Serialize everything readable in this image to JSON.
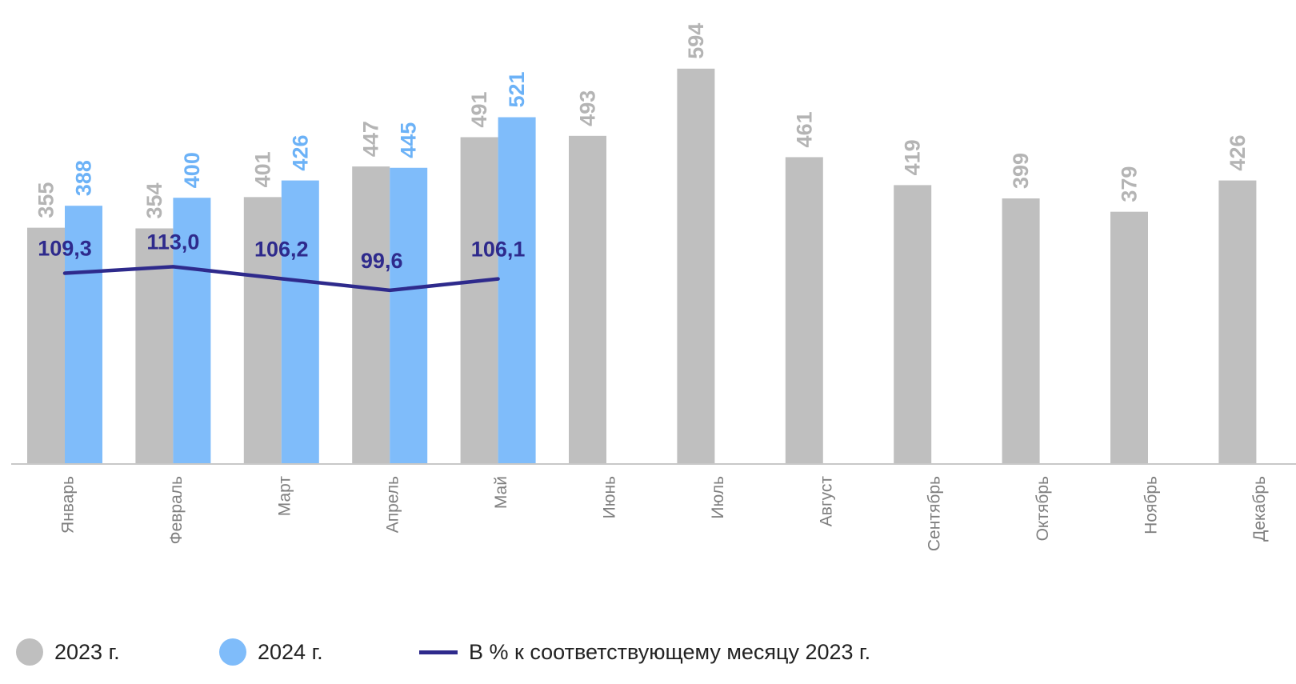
{
  "chart_data": {
    "type": "bar",
    "title": "",
    "xlabel": "",
    "ylabel": "",
    "categories": [
      "Январь",
      "Февраль",
      "Март",
      "Апрель",
      "Май",
      "Июнь",
      "Июль",
      "Август",
      "Сентябрь",
      "Октябрь",
      "Ноябрь",
      "Декабрь"
    ],
    "series": [
      {
        "name": "2023 г.",
        "type": "bar",
        "color": "#bfbfbf",
        "label_color": "#b4b4b4",
        "values": [
          355,
          354,
          401,
          447,
          491,
          493,
          594,
          461,
          419,
          399,
          379,
          426
        ]
      },
      {
        "name": "2024 г.",
        "type": "bar",
        "color": "#7fbcfa",
        "label_color": "#6cb2f7",
        "values": [
          388,
          400,
          426,
          445,
          521,
          null,
          null,
          null,
          null,
          null,
          null,
          null
        ]
      },
      {
        "name": "В % к соответствующему месяцу 2023 г.",
        "type": "line",
        "color": "#2e2a8c",
        "values": [
          109.3,
          113.0,
          106.2,
          99.6,
          106.1,
          null,
          null,
          null,
          null,
          null,
          null,
          null
        ],
        "labels": [
          "109,3",
          "113,0",
          "106,2",
          "99,6",
          "106,1"
        ]
      }
    ],
    "bar_axis_range": [
      0,
      600
    ],
    "line_axis_range": [
      0,
      200
    ],
    "grid": false,
    "legend_position": "bottom"
  }
}
